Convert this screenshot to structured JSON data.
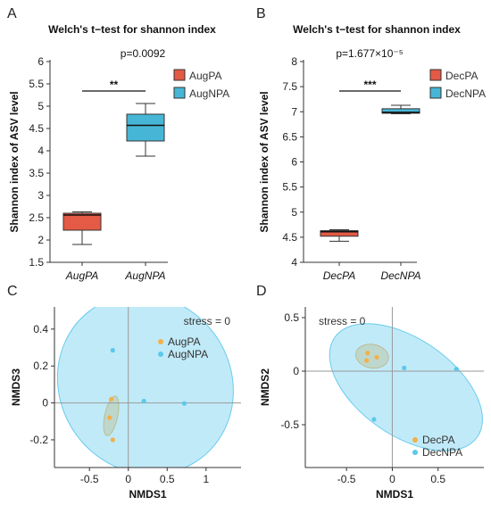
{
  "panels": [
    {
      "letter": "A",
      "title": "Welch's t−test for shannon index",
      "pvalue": "p=0.0092",
      "sig": "**"
    },
    {
      "letter": "B",
      "title": "Welch's t−test for shannon index",
      "pvalue": "p=1.677×10⁻⁵",
      "sig": "***"
    },
    {
      "letter": "C",
      "stress": "stress = 0"
    },
    {
      "letter": "D",
      "stress": "stress = 0"
    }
  ],
  "colors": {
    "red": "#e45a45",
    "blue": "#47b6d6",
    "orange": "#f3b04a",
    "cyan": "#5cc8ec"
  },
  "chart_data": [
    {
      "type": "box",
      "title": "Welch's t−test for shannon index",
      "ylabel": "Shannon index of ASV level",
      "ylim": [
        1.5,
        6
      ],
      "yticks": [
        "1.5",
        "2",
        "2.5",
        "3",
        "3.5",
        "4",
        "4.5",
        "5",
        "5.5",
        "6"
      ],
      "categories": [
        "AugPA",
        "AugNPA"
      ],
      "legend": [
        "AugPA",
        "AugNPA"
      ],
      "boxes": [
        {
          "name": "AugPA",
          "min": 1.9,
          "q1": 2.22,
          "median": 2.56,
          "q3": 2.6,
          "max": 2.63
        },
        {
          "name": "AugNPA",
          "min": 3.88,
          "q1": 4.22,
          "median": 4.57,
          "q3": 4.82,
          "max": 5.06
        }
      ],
      "annotation": {
        "pvalue": "p=0.0092",
        "significance": "**"
      }
    },
    {
      "type": "box",
      "title": "Welch's t−test for shannon index",
      "ylabel": "Shannon index of ASV level",
      "ylim": [
        4,
        8
      ],
      "yticks": [
        "4",
        "4.5",
        "5",
        "5.5",
        "6",
        "6.5",
        "7",
        "7.5",
        "8"
      ],
      "categories": [
        "DecPA",
        "DecNPA"
      ],
      "legend": [
        "DecPA",
        "DecNPA"
      ],
      "boxes": [
        {
          "name": "DecPA",
          "min": 4.42,
          "q1": 4.52,
          "median": 4.61,
          "q3": 4.63,
          "max": 4.65
        },
        {
          "name": "DecNPA",
          "min": 6.96,
          "q1": 6.97,
          "median": 6.99,
          "q3": 7.06,
          "max": 7.13
        }
      ],
      "annotation": {
        "pvalue": "p=1.677×10⁻⁵",
        "significance": "***"
      }
    },
    {
      "type": "scatter",
      "xlabel": "NMDS1",
      "ylabel": "NMDS3",
      "xlim": [
        -0.95,
        1.45
      ],
      "ylim": [
        -0.35,
        0.52
      ],
      "xticks": [
        "-0.5",
        "0",
        "0.5",
        "1"
      ],
      "yticks": [
        "-0.2",
        "0",
        "0.2",
        "0.4"
      ],
      "stress": "stress = 0",
      "series": [
        {
          "name": "AugPA",
          "points": [
            [
              -0.22,
              0.02
            ],
            [
              -0.24,
              -0.08
            ],
            [
              -0.2,
              -0.2
            ]
          ],
          "ellipse": {
            "cx": -0.22,
            "cy": -0.07,
            "rx": 0.26,
            "ry": 0.035,
            "angle": -78
          }
        },
        {
          "name": "AugNPA",
          "points": [
            [
              -0.2,
              0.285
            ],
            [
              0.2,
              0.01
            ],
            [
              0.72,
              -0.003
            ]
          ],
          "ellipse": {
            "cx": 0.22,
            "cy": 0.1,
            "rx": 1.1,
            "ry": 0.5,
            "angle": -36
          }
        }
      ]
    },
    {
      "type": "scatter",
      "xlabel": "NMDS1",
      "ylabel": "NMDS2",
      "xlim": [
        -0.95,
        1.0
      ],
      "ylim": [
        -0.9,
        0.6
      ],
      "xticks": [
        "-0.5",
        "0",
        "0.5"
      ],
      "yticks": [
        "-0.5",
        "0",
        "0.5"
      ],
      "stress": "stress = 0",
      "series": [
        {
          "name": "DecPA",
          "points": [
            [
              -0.27,
              0.17
            ],
            [
              -0.28,
              0.1
            ],
            [
              -0.17,
              0.13
            ]
          ],
          "ellipse": {
            "cx": -0.22,
            "cy": 0.14,
            "rx": 0.18,
            "ry": 0.11,
            "angle": 10
          }
        },
        {
          "name": "DecNPA",
          "points": [
            [
              0.13,
              0.03
            ],
            [
              0.7,
              0.02
            ],
            [
              -0.2,
              -0.45
            ]
          ],
          "ellipse": {
            "cx": 0.15,
            "cy": -0.15,
            "rx": 0.95,
            "ry": 0.45,
            "angle": 35
          }
        }
      ]
    }
  ]
}
